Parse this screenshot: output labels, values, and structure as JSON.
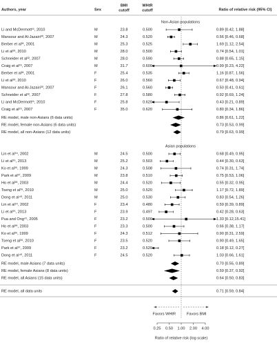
{
  "chart_data": {
    "type": "forest",
    "headers": {
      "author": "Authors, year",
      "sex": "Sex",
      "bmi": [
        "BMI",
        "cutoff"
      ],
      "whtr": [
        "WHtR",
        "cutoff"
      ],
      "ratio": "Ratio of relative risk (95% CI)"
    },
    "groups": [
      {
        "name": "Non-Asian populations",
        "rows": [
          {
            "author": "Li and McDermott¹¹, 2010",
            "sex": "M",
            "bmi": "23.8",
            "whtr": "0.500",
            "value": 0.89,
            "lower": 0.42,
            "upper": 1.88,
            "value_label": "0.89 [0.42, 1.88]"
          },
          {
            "author": "Mansour and Al-Jazairi³⁰, 2007",
            "sex": "M",
            "bmi": "24.3",
            "whtr": "0.520",
            "value": 0.56,
            "lower": 0.46,
            "upper": 0.68,
            "value_label": "0.56 [0.46, 0.68]"
          },
          {
            "author": "Berber et al³¹, 2001",
            "sex": "M",
            "bmi": "25.3",
            "whtr": "0.525",
            "value": 1.69,
            "lower": 1.12,
            "upper": 2.54,
            "value_label": "1.69 [1.12, 2.54]"
          },
          {
            "author": "Li et al³³, 2010",
            "sex": "M",
            "bmi": "28.0",
            "whtr": "0.500",
            "value": 0.74,
            "lower": 0.54,
            "upper": 1.01,
            "value_label": "0.74 [0.54, 1.01]"
          },
          {
            "author": "Schneider et al³², 2007",
            "sex": "M",
            "bmi": "28.0",
            "whtr": "0.590",
            "value": 0.88,
            "lower": 0.65,
            "upper": 1.15,
            "value_label": "0.88 [0.65, 1.15]"
          },
          {
            "author": "Craig et al²⁹, 2007",
            "sex": "M",
            "bmi": "31.7",
            "whtr": "0.600",
            "value": 0.99,
            "lower": 0.23,
            "upper": 4.22,
            "value_label": "0.99 [0.23, 4.22]"
          },
          {
            "author": "Berber et al³¹, 2001",
            "sex": "F",
            "bmi": "25.4",
            "whtr": "0.535",
            "value": 1.16,
            "lower": 0.87,
            "upper": 1.56,
            "value_label": "1.16 [0.87, 1.56]"
          },
          {
            "author": "Li et al³³, 2010",
            "sex": "F",
            "bmi": "26.0",
            "whtr": "0.560",
            "value": 0.67,
            "lower": 0.48,
            "upper": 0.94,
            "value_label": "0.67 [0.48, 0.94]"
          },
          {
            "author": "Mansour and Al-Jazairi³⁰, 2007",
            "sex": "F",
            "bmi": "26.1",
            "whtr": "0.560",
            "value": 0.5,
            "lower": 0.41,
            "upper": 0.61,
            "value_label": "0.50 [0.41, 0.61]"
          },
          {
            "author": "Schneider et al³², 2007",
            "sex": "F",
            "bmi": "27.8",
            "whtr": "0.580",
            "value": 0.92,
            "lower": 0.69,
            "upper": 1.24,
            "value_label": "0.92 [0.69, 1.24]"
          },
          {
            "author": "Li and McDermott¹¹, 2010",
            "sex": "F",
            "bmi": "25.8",
            "whtr": "0.620",
            "value": 0.43,
            "lower": 0.21,
            "upper": 0.89,
            "value_label": "0.43 [0.21, 0.89]"
          },
          {
            "author": "Craig et al²⁹, 2007",
            "sex": "F",
            "bmi": "35.0",
            "whtr": "0.620",
            "value": 0.8,
            "lower": 0.34,
            "upper": 1.86,
            "value_label": "0.80 [0.34, 1.86]"
          }
        ],
        "summaries": [
          {
            "name": "RE model, male non-Asians (6 data units)",
            "value": 0.86,
            "lower": 0.61,
            "upper": 1.22,
            "value_label": "0.86 [0.61, 1.22]"
          },
          {
            "name": "RE model, female non-Asians (6 data units)",
            "value": 0.73,
            "lower": 0.53,
            "upper": 0.99,
            "value_label": "0.73 [0.53, 0.99]"
          },
          {
            "name": "RE model, all non-Asians (12 data units)",
            "value": 0.79,
            "lower": 0.63,
            "upper": 0.99,
            "value_label": "0.79 [0.63, 0.99]"
          }
        ]
      },
      {
        "name": "Asian populations",
        "rows": [
          {
            "author": "Lin et al³⁴, 2002",
            "sex": "M",
            "bmi": "24.5",
            "whtr": "0.500",
            "value": 0.68,
            "lower": 0.49,
            "upper": 0.95,
            "value_label": "0.68 [0.49, 0.95]"
          },
          {
            "author": "Li et al³⁵, 2013",
            "sex": "M",
            "bmi": "25.2",
            "whtr": "0.503",
            "value": 0.44,
            "lower": 0.3,
            "upper": 0.63,
            "value_label": "0.44 [0.30, 0.63]"
          },
          {
            "author": "Ko et al³⁶, 1999",
            "sex": "M",
            "bmi": "24.3",
            "whtr": "0.508",
            "value": 0.74,
            "lower": 0.31,
            "upper": 1.74,
            "value_label": "0.74 [0.31, 1.74]"
          },
          {
            "author": "Park et al³⁷, 2009",
            "sex": "M",
            "bmi": "23.8",
            "whtr": "0.510",
            "value": 0.75,
            "lower": 0.53,
            "upper": 1.06,
            "value_label": "0.75 [0.53, 1.06]"
          },
          {
            "author": "Ho et al³⁸, 2003",
            "sex": "M",
            "bmi": "24.4",
            "whtr": "0.520",
            "value": 0.55,
            "lower": 0.32,
            "upper": 0.95,
            "value_label": "0.55 [0.32, 0.95]"
          },
          {
            "author": "Tseng et al³⁹, 2010",
            "sex": "M",
            "bmi": "25.0",
            "whtr": "0.520",
            "value": 1.17,
            "lower": 0.72,
            "upper": 1.89,
            "value_label": "1.17 [0.72, 1.89]"
          },
          {
            "author": "Dong et al⁴⁰, 2011",
            "sex": "M",
            "bmi": "25.0",
            "whtr": "0.530",
            "value": 0.83,
            "lower": 0.54,
            "upper": 1.26,
            "value_label": "0.83 [0.54, 1.26]"
          },
          {
            "author": "Lin et al³⁴, 2002",
            "sex": "F",
            "bmi": "23.4",
            "whtr": "0.480",
            "value": 0.59,
            "lower": 0.39,
            "upper": 0.89,
            "value_label": "0.59 [0.39, 0.89]"
          },
          {
            "author": "Li et al³⁵, 2013",
            "sex": "F",
            "bmi": "23.9",
            "whtr": "0.497",
            "value": 0.42,
            "lower": 0.28,
            "upper": 0.63,
            "value_label": "0.42 [0.28, 0.63]"
          },
          {
            "author": "Pua and Ong⁴¹, 2005",
            "sex": "F",
            "bmi": "23.2",
            "whtr": "0.500",
            "value": 1.33,
            "lower": 0.12,
            "upper": 15.41,
            "value_label": "1.33 [0.12,15.41]"
          },
          {
            "author": "Ho et al³⁸, 2003",
            "sex": "F",
            "bmi": "23.3",
            "whtr": "0.500",
            "value": 0.66,
            "lower": 0.38,
            "upper": 1.17,
            "value_label": "0.66 [0.38, 1.17]"
          },
          {
            "author": "Ko et al³⁶, 1999",
            "sex": "F",
            "bmi": "24.3",
            "whtr": "0.512",
            "value": 0.9,
            "lower": 0.31,
            "upper": 2.59,
            "value_label": "0.90 [0.31, 2.59]"
          },
          {
            "author": "Tseng et al³⁹, 2010",
            "sex": "F",
            "bmi": "23.5",
            "whtr": "0.520",
            "value": 0.9,
            "lower": 0.49,
            "upper": 1.65,
            "value_label": "0.90 [0.49, 1.65]"
          },
          {
            "author": "Park et al³⁷, 2009",
            "sex": "F",
            "bmi": "23.2",
            "whtr": "0.520",
            "value": 0.18,
            "lower": 0.12,
            "upper": 0.27,
            "value_label": "0.18 [0.12, 0.27]"
          },
          {
            "author": "Dong et al⁴⁰, 2011",
            "sex": "F",
            "bmi": "24.5",
            "whtr": "0.520",
            "value": 1.03,
            "lower": 0.66,
            "upper": 1.61,
            "value_label": "1.03 [0.66, 1.61]"
          }
        ],
        "summaries": [
          {
            "name": "RE model, male Asians (7 data units)",
            "value": 0.7,
            "lower": 0.55,
            "upper": 0.89,
            "value_label": "0.70 [0.55, 0.89]"
          },
          {
            "name": "RE model, female Asians (8 data units)",
            "value": 0.59,
            "lower": 0.37,
            "upper": 0.92,
            "value_label": "0.59 [0.37, 0.92]"
          },
          {
            "name": "RE model, all Asians (15 data units)",
            "value": 0.64,
            "lower": 0.5,
            "upper": 0.83,
            "value_label": "0.64 [0.50, 0.83]"
          }
        ]
      }
    ],
    "overall": {
      "name": "RE model, all data units",
      "value": 0.71,
      "lower": 0.59,
      "upper": 0.84,
      "value_label": "0.71 [0.59, 0.84]"
    },
    "favors_left": "Favors WHtR",
    "favors_right": "Favors BMI",
    "xlabel": "Ratio of relative risk (log scale)",
    "log_x": true,
    "xlim": [
      0.25,
      4
    ],
    "xticks": [
      0.25,
      {
        "value": 0.5,
        "label": "0.50"
      },
      {
        "value": 1,
        "label": "1.00"
      },
      {
        "value": 2,
        "label": "2.00"
      },
      {
        "value": 4,
        "label": "4.00"
      }
    ],
    "color": "#000000"
  }
}
